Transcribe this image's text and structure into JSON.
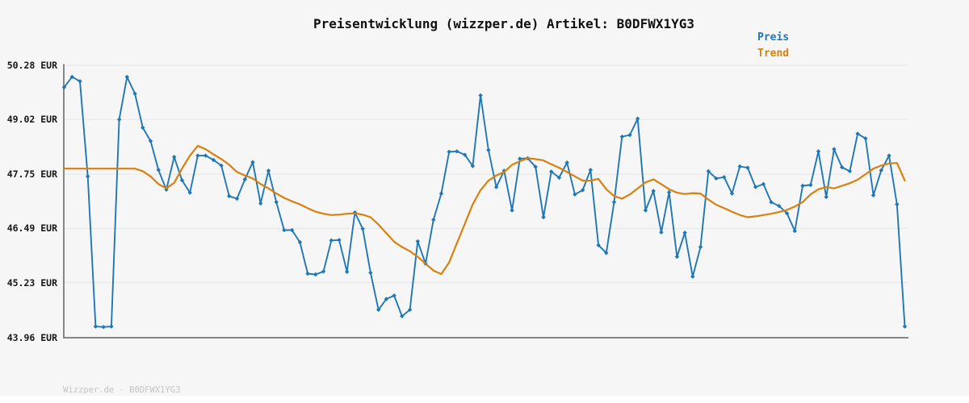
{
  "title": "Preisentwicklung (wizzper.de) Artikel: B0DFWX1YG3",
  "footer": "Wizzper.de - B0DFWX1YG3",
  "colors": {
    "price": "#1f77b4",
    "trend": "#d9800f",
    "grid": "#e5e5e5",
    "axis": "#858585",
    "title_text": "#111111",
    "tick_text": "#161616",
    "footer_text": "#c4c4c4",
    "background": "#f6f6f6"
  },
  "y_axis": {
    "unit": "EUR",
    "tick_labels": [
      "50.28 EUR",
      "49.02 EUR",
      "47.75 EUR",
      "46.49 EUR",
      "45.23 EUR",
      "43.96 EUR"
    ],
    "tick_values": [
      50.28,
      49.02,
      47.75,
      46.49,
      45.23,
      43.96
    ]
  },
  "x_axis": {
    "tick_labels": []
  },
  "chart_data": {
    "type": "line",
    "title": "Preisentwicklung (wizzper.de) Artikel: B0DFWX1YG3",
    "xlabel": "",
    "ylabel": "EUR",
    "ylim": [
      43.96,
      50.28
    ],
    "y_ticks": [
      50.28,
      49.02,
      47.75,
      46.49,
      45.23,
      43.96
    ],
    "grid": "horizontal",
    "legend_position": "top-right",
    "series": [
      {
        "name": "Preis",
        "color": "#1f77b4",
        "marker": "diamond",
        "line_width": 1.9,
        "values": [
          49.77,
          50.01,
          49.91,
          47.7,
          44.21,
          44.2,
          44.21,
          49.02,
          50.01,
          49.62,
          48.83,
          48.52,
          47.85,
          47.39,
          48.15,
          47.61,
          47.32,
          48.18,
          48.18,
          48.08,
          47.95,
          47.24,
          47.18,
          47.63,
          48.03,
          47.07,
          47.83,
          47.1,
          46.45,
          46.45,
          46.17,
          45.44,
          45.42,
          45.49,
          46.21,
          46.22,
          45.48,
          46.86,
          46.48,
          45.46,
          44.6,
          44.85,
          44.93,
          44.45,
          44.6,
          46.19,
          45.67,
          46.69,
          47.3,
          48.27,
          48.28,
          48.2,
          47.94,
          49.58,
          48.31,
          47.45,
          47.83,
          46.91,
          48.11,
          48.12,
          47.92,
          46.75,
          47.81,
          47.67,
          48.02,
          47.28,
          47.38,
          47.85,
          46.1,
          45.92,
          47.1,
          48.62,
          48.66,
          49.04,
          46.91,
          47.36,
          46.4,
          47.33,
          45.83,
          46.39,
          45.37,
          46.06,
          47.82,
          47.65,
          47.68,
          47.3,
          47.93,
          47.9,
          47.45,
          47.52,
          47.1,
          47.01,
          46.84,
          46.43,
          47.48,
          47.5,
          48.28,
          47.22,
          48.33,
          47.91,
          47.82,
          48.69,
          48.58,
          47.26,
          47.84,
          48.18,
          47.05,
          44.21
        ]
      },
      {
        "name": "Trend",
        "color": "#d9800f",
        "marker": "none",
        "line_width": 2.2,
        "values": [
          47.88,
          47.88,
          47.88,
          47.88,
          47.88,
          47.88,
          47.88,
          47.88,
          47.88,
          47.88,
          47.82,
          47.7,
          47.52,
          47.42,
          47.55,
          47.88,
          48.18,
          48.41,
          48.33,
          48.21,
          48.1,
          47.97,
          47.8,
          47.72,
          47.65,
          47.52,
          47.42,
          47.3,
          47.2,
          47.12,
          47.05,
          46.96,
          46.88,
          46.83,
          46.8,
          46.81,
          46.83,
          46.84,
          46.81,
          46.75,
          46.58,
          46.38,
          46.18,
          46.06,
          45.96,
          45.83,
          45.67,
          45.51,
          45.43,
          45.7,
          46.15,
          46.6,
          47.05,
          47.38,
          47.6,
          47.72,
          47.8,
          47.97,
          48.05,
          48.12,
          48.1,
          48.07,
          47.98,
          47.9,
          47.8,
          47.7,
          47.6,
          47.6,
          47.64,
          47.4,
          47.24,
          47.18,
          47.28,
          47.42,
          47.56,
          47.63,
          47.52,
          47.4,
          47.32,
          47.29,
          47.31,
          47.3,
          47.16,
          47.04,
          46.96,
          46.88,
          46.8,
          46.75,
          46.77,
          46.8,
          46.83,
          46.87,
          46.92,
          47.0,
          47.1,
          47.28,
          47.4,
          47.45,
          47.42,
          47.48,
          47.54,
          47.62,
          47.75,
          47.88,
          47.95,
          48.0,
          48.01,
          47.6
        ]
      }
    ]
  }
}
